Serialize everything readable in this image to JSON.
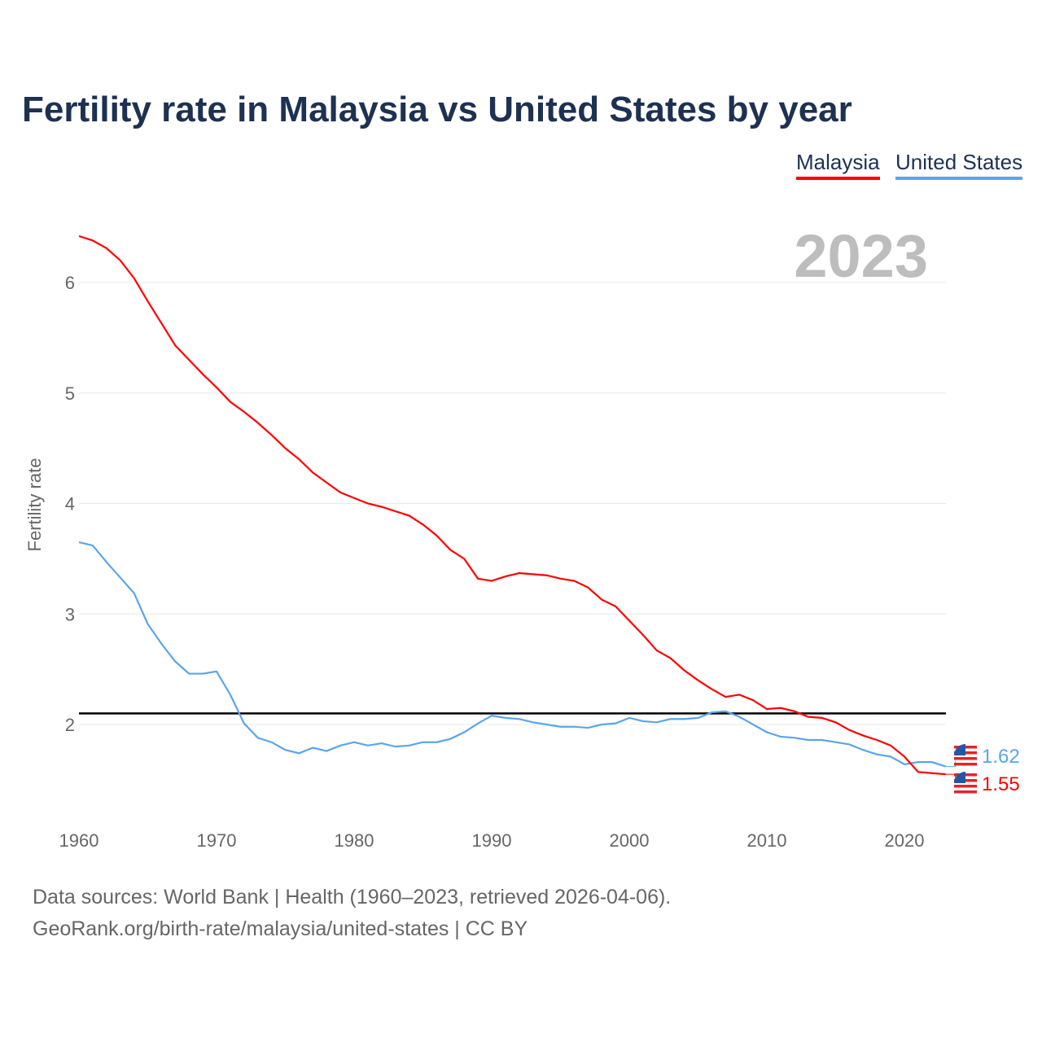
{
  "title": "Fertility rate in Malaysia vs United States by year",
  "legend": {
    "malaysia": "Malaysia",
    "us": "United States"
  },
  "year_label": "2023",
  "footer": {
    "line1": "Data sources: World Bank | Health (1960–2023, retrieved 2026-04-06).",
    "line2": "GeoRank.org/birth-rate/malaysia/united-states | CC BY"
  },
  "colors": {
    "malaysia": "#ff0000",
    "us": "#5aa5ea",
    "reference": "#000000"
  },
  "chart_data": {
    "type": "line",
    "title": "Fertility rate in Malaysia vs United States by year",
    "xlabel": "",
    "ylabel": "Fertility rate",
    "xlim": [
      1960,
      2023
    ],
    "ylim": [
      1.2,
      6.6
    ],
    "xticks": [
      1960,
      1970,
      1980,
      1990,
      2000,
      2010,
      2020
    ],
    "yticks": [
      2,
      3,
      4,
      5,
      6
    ],
    "reference_line": 2.1,
    "x_start": 1960,
    "series": [
      {
        "name": "Malaysia",
        "end_label": "1.55",
        "values": [
          6.42,
          6.38,
          6.31,
          6.2,
          6.04,
          5.83,
          5.63,
          5.43,
          5.3,
          5.17,
          5.05,
          4.92,
          4.83,
          4.73,
          4.62,
          4.5,
          4.4,
          4.28,
          4.19,
          4.1,
          4.05,
          4.0,
          3.97,
          3.93,
          3.89,
          3.81,
          3.71,
          3.58,
          3.5,
          3.32,
          3.3,
          3.34,
          3.37,
          3.36,
          3.35,
          3.32,
          3.3,
          3.24,
          3.13,
          3.07,
          2.94,
          2.81,
          2.67,
          2.6,
          2.49,
          2.4,
          2.32,
          2.25,
          2.27,
          2.22,
          2.14,
          2.15,
          2.12,
          2.07,
          2.06,
          2.02,
          1.95,
          1.9,
          1.86,
          1.81,
          1.71,
          1.57,
          1.56,
          1.55
        ]
      },
      {
        "name": "United States",
        "end_label": "1.62",
        "values": [
          3.65,
          3.62,
          3.47,
          3.33,
          3.19,
          2.91,
          2.73,
          2.57,
          2.46,
          2.46,
          2.48,
          2.27,
          2.01,
          1.88,
          1.84,
          1.77,
          1.74,
          1.79,
          1.76,
          1.81,
          1.84,
          1.81,
          1.83,
          1.8,
          1.81,
          1.84,
          1.84,
          1.87,
          1.93,
          2.01,
          2.08,
          2.06,
          2.05,
          2.02,
          2.0,
          1.98,
          1.98,
          1.97,
          2.0,
          2.01,
          2.06,
          2.03,
          2.02,
          2.05,
          2.05,
          2.06,
          2.11,
          2.12,
          2.07,
          2.0,
          1.93,
          1.89,
          1.88,
          1.86,
          1.86,
          1.84,
          1.82,
          1.77,
          1.73,
          1.71,
          1.64,
          1.66,
          1.66,
          1.62
        ]
      }
    ]
  }
}
